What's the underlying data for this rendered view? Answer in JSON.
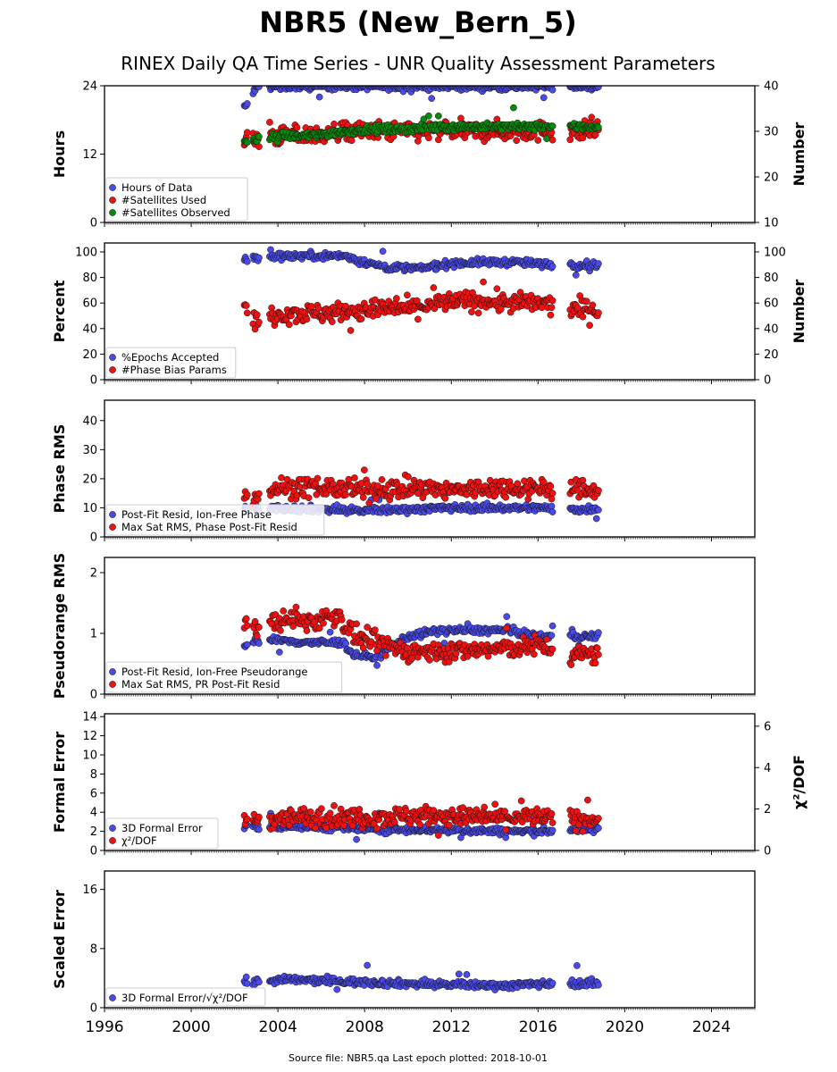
{
  "title": "NBR5 (New_Bern_5)",
  "subtitle": "RINEX Daily QA Time Series - UNR Quality Assessment Parameters",
  "footer": "Source file: NBR5.qa Last epoch plotted: 2018-10-01",
  "colors": {
    "blue": "#4a4ae8",
    "red": "#ee1111",
    "green": "#0a8a0a",
    "edge": "#111111"
  },
  "x_axis": {
    "range": [
      1996,
      2026
    ],
    "ticks": [
      1996,
      2000,
      2004,
      2008,
      2012,
      2016,
      2020,
      2024
    ]
  },
  "chart_data": [
    {
      "type": "scatter",
      "ylabel": "Hours",
      "ylabel_right": "Number",
      "ylim": [
        0,
        24
      ],
      "yticks": [
        0,
        12,
        24
      ],
      "ylim_right": [
        10,
        40
      ],
      "yticks_right": [
        10,
        20,
        30,
        40
      ],
      "legend_position": "bottom-left",
      "series": [
        {
          "name": "Hours of Data",
          "color": "blue",
          "axis": "left",
          "x": [
            2002.5,
            2003.0,
            2003.6,
            2004.5,
            2005.5,
            2006.5,
            2007.5,
            2008.5,
            2009.5,
            2010.5,
            2011.5,
            2012.5,
            2013.5,
            2014.5,
            2015.5,
            2016.5,
            2017.6,
            2018.4,
            2018.8
          ],
          "y": [
            20.2,
            23.8,
            23.8,
            23.9,
            23.9,
            23.9,
            23.9,
            23.9,
            23.8,
            23.9,
            23.9,
            23.9,
            23.9,
            23.8,
            23.8,
            23.9,
            23.9,
            23.8,
            23.9
          ]
        },
        {
          "name": "#Satellites Used",
          "color": "red",
          "axis": "right",
          "x": [
            2002.5,
            2003.0,
            2004.0,
            2005.5,
            2007.0,
            2008.5,
            2010.0,
            2011.5,
            2013.0,
            2014.5,
            2016.0,
            2017.6,
            2018.5
          ],
          "y": [
            28,
            28,
            29,
            29,
            30,
            30,
            30,
            30,
            30,
            30,
            30,
            30,
            30
          ]
        },
        {
          "name": "#Satellites Observed",
          "color": "green",
          "axis": "right",
          "x": [
            2002.5,
            2003.0,
            2004.0,
            2005.5,
            2007.0,
            2008.5,
            2010.0,
            2011.5,
            2013.0,
            2014.5,
            2016.0,
            2017.6,
            2018.5
          ],
          "y": [
            28,
            28,
            29,
            29,
            30,
            30.5,
            30.5,
            31,
            31,
            31,
            31,
            31,
            31
          ]
        }
      ]
    },
    {
      "type": "scatter",
      "ylabel": "Percent",
      "ylabel_right": "Number",
      "ylim": [
        0,
        107
      ],
      "yticks": [
        0,
        20,
        40,
        60,
        80,
        100
      ],
      "ylim_right": [
        0,
        107
      ],
      "yticks_right": [
        0,
        20,
        40,
        60,
        80,
        100
      ],
      "legend_position": "bottom-left",
      "series": [
        {
          "name": "%Epochs Accepted",
          "color": "blue",
          "axis": "left",
          "x": [
            2002.5,
            2003.0,
            2004.0,
            2005.5,
            2007.0,
            2008.0,
            2009.0,
            2010.5,
            2012.0,
            2013.5,
            2015.0,
            2016.5,
            2017.6,
            2018.5
          ],
          "y": [
            94,
            95,
            97,
            97,
            97,
            92,
            88,
            87,
            91,
            92,
            92,
            90,
            90,
            90
          ]
        },
        {
          "name": "#Phase Bias Params",
          "color": "red",
          "axis": "right",
          "x": [
            2002.5,
            2003.0,
            2004.0,
            2005.5,
            2007.0,
            2008.5,
            2010.0,
            2011.5,
            2013.0,
            2014.5,
            2016.0,
            2017.6,
            2018.5
          ],
          "y": [
            55,
            45,
            52,
            52,
            53,
            55,
            56,
            60,
            62,
            60,
            60,
            55,
            55
          ]
        }
      ]
    },
    {
      "type": "scatter",
      "ylabel": "Phase RMS",
      "ylim": [
        0,
        47
      ],
      "yticks": [
        0,
        10,
        20,
        30,
        40
      ],
      "legend_position": "bottom-left",
      "series": [
        {
          "name": "Post-Fit Resid, Ion-Free Phase",
          "color": "blue",
          "axis": "left",
          "x": [
            2002.5,
            2003.0,
            2004.0,
            2006.0,
            2008.0,
            2010.0,
            2012.0,
            2014.0,
            2016.0,
            2017.6,
            2018.5
          ],
          "y": [
            10,
            10,
            10,
            9.5,
            9,
            9.5,
            10,
            10,
            10,
            9.5,
            9.5
          ]
        },
        {
          "name": "Max Sat RMS, Phase Post-Fit Resid",
          "color": "red",
          "axis": "left",
          "x": [
            2002.5,
            2003.0,
            2004.0,
            2006.0,
            2008.0,
            2010.0,
            2012.0,
            2014.0,
            2016.0,
            2017.6,
            2018.5
          ],
          "y": [
            15,
            14,
            17,
            17,
            16,
            17,
            16,
            17,
            17,
            16,
            16
          ]
        }
      ]
    },
    {
      "type": "scatter",
      "ylabel": "Pseudorange RMS",
      "ylim": [
        0,
        2.25
      ],
      "yticks": [
        0,
        1,
        2
      ],
      "legend_position": "bottom-left",
      "series": [
        {
          "name": "Post-Fit Resid, Ion-Free Pseudorange",
          "color": "blue",
          "axis": "left",
          "x": [
            2002.5,
            2003.0,
            2004.0,
            2005.5,
            2007.0,
            2007.5,
            2008.5,
            2010.0,
            2011.5,
            2013.0,
            2014.5,
            2016.0,
            2017.6,
            2018.5
          ],
          "y": [
            0.8,
            0.88,
            0.88,
            0.85,
            0.85,
            0.65,
            0.6,
            0.95,
            1.05,
            1.05,
            1.05,
            0.95,
            0.95,
            0.95
          ]
        },
        {
          "name": "Max Sat RMS, PR Post-Fit Resid",
          "color": "red",
          "axis": "left",
          "x": [
            2002.5,
            2003.0,
            2004.0,
            2005.5,
            2006.8,
            2007.5,
            2008.5,
            2010.0,
            2011.5,
            2013.0,
            2014.5,
            2016.0,
            2017.6,
            2018.5
          ],
          "y": [
            1.2,
            1.1,
            1.2,
            1.2,
            1.3,
            0.95,
            0.85,
            0.7,
            0.7,
            0.72,
            0.75,
            0.8,
            0.65,
            0.65
          ]
        }
      ]
    },
    {
      "type": "scatter",
      "ylabel": "Formal Error",
      "ylabel_right": "χ²/DOF",
      "ylim": [
        0,
        14.3
      ],
      "yticks": [
        0,
        2,
        4,
        6,
        8,
        10,
        12,
        14
      ],
      "ylim_right": [
        0,
        6.6
      ],
      "yticks_right": [
        0,
        2,
        4,
        6
      ],
      "legend_position": "bottom-left",
      "series": [
        {
          "name": "3D Formal Error",
          "color": "blue",
          "axis": "left",
          "x": [
            2002.5,
            2003.0,
            2004.5,
            2006.5,
            2008.5,
            2010.5,
            2012.5,
            2014.5,
            2016.0,
            2017.6,
            2018.5
          ],
          "y": [
            2.6,
            2.5,
            2.5,
            2.4,
            2.2,
            2.2,
            2.1,
            2.0,
            2.0,
            2.2,
            2.2
          ]
        },
        {
          "name": "χ²/DOF",
          "color": "red",
          "axis": "right",
          "x": [
            2002.5,
            2003.0,
            2004.5,
            2006.5,
            2008.5,
            2010.5,
            2012.5,
            2014.5,
            2016.0,
            2017.6,
            2018.5
          ],
          "y": [
            1.5,
            1.5,
            1.6,
            1.6,
            1.6,
            1.7,
            1.6,
            1.6,
            1.6,
            1.5,
            1.5
          ]
        }
      ]
    },
    {
      "type": "scatter",
      "ylabel": "Scaled Error",
      "ylim": [
        0,
        18.5
      ],
      "yticks": [
        0,
        8,
        16
      ],
      "legend_position": "bottom-left",
      "series": [
        {
          "name": "3D Formal Error/√χ²/DOF",
          "color": "blue",
          "axis": "left",
          "x": [
            2002.5,
            2003.0,
            2004.5,
            2006.5,
            2008.5,
            2010.5,
            2012.5,
            2014.5,
            2016.0,
            2017.6,
            2018.5
          ],
          "y": [
            3.5,
            3.5,
            3.8,
            3.6,
            3.4,
            3.2,
            3.1,
            3.0,
            3.2,
            3.3,
            3.3
          ]
        }
      ]
    }
  ]
}
